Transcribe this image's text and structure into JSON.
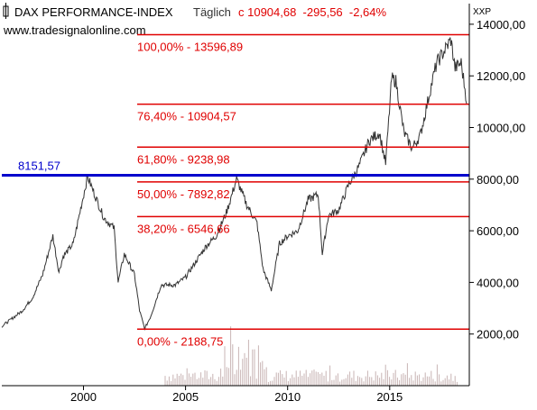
{
  "header": {
    "name": "DAX PERFORMANCE-INDEX",
    "interval": "Täglich",
    "quote": "c 10904,68  -295,56  -2,64%",
    "website": "www.tradesignalonline.com",
    "axis_tag": "XXP"
  },
  "colors": {
    "price": "#333333",
    "fib": "#e00000",
    "fib_text": "#e00000",
    "support": "#0000cc",
    "volume": "#c8b4b4",
    "axis": "#000000"
  },
  "chart_data": {
    "type": "line",
    "xlim": [
      1996.0,
      2018.9
    ],
    "ylim": [
      0,
      14800
    ],
    "x_ticks": [
      2000,
      2005,
      2010,
      2015
    ],
    "x_tick_labels": [
      "2000",
      "2005",
      "2010",
      "2015"
    ],
    "y_ticks": [
      2000,
      4000,
      6000,
      8000,
      10000,
      12000,
      14000
    ],
    "y_tick_labels": [
      "2000,00",
      "4000,00",
      "6000,00",
      "8000,00",
      "10000,00",
      "12000,00",
      "14000,00"
    ],
    "series": [
      {
        "x": [
          1996.0,
          1996.5,
          1997.0,
          1997.5,
          1998.0,
          1998.5,
          1998.8,
          1999.0,
          1999.5,
          1999.9,
          2000.2,
          2000.6,
          2001.0,
          2001.5,
          2001.7,
          2002.0,
          2002.5,
          2002.75,
          2003.0,
          2003.3,
          2003.8,
          2004.5,
          2005.0,
          2005.5,
          2006.0,
          2006.5,
          2007.0,
          2007.5,
          2008.0,
          2008.5,
          2008.8,
          2009.2,
          2009.6,
          2010.0,
          2010.5,
          2011.0,
          2011.5,
          2011.7,
          2012.0,
          2012.5,
          2013.0,
          2013.5,
          2014.0,
          2014.5,
          2014.8,
          2015.1,
          2015.3,
          2015.7,
          2016.1,
          2016.5,
          2017.0,
          2017.3,
          2017.7,
          2018.0,
          2018.2,
          2018.5,
          2018.8
        ],
        "y": [
          2300,
          2600,
          2900,
          3400,
          4300,
          5800,
          4400,
          5000,
          5500,
          7000,
          8100,
          7300,
          6500,
          6100,
          4000,
          5100,
          4300,
          2900,
          2200,
          2700,
          3900,
          3900,
          4200,
          4800,
          5400,
          5800,
          6700,
          8000,
          7000,
          6300,
          4500,
          3700,
          5500,
          5800,
          6000,
          7200,
          7400,
          5100,
          6600,
          6800,
          7800,
          8500,
          9500,
          9800,
          8600,
          11900,
          11800,
          9800,
          9200,
          9700,
          11500,
          12500,
          13000,
          13400,
          12300,
          12500,
          10900
        ]
      }
    ],
    "fibonacci_levels": [
      {
        "label": "100,00% - 13596,89",
        "value": 13596.89
      },
      {
        "label": "76,40% - 10904,57",
        "value": 10904.57
      },
      {
        "label": "61,80% - 9238,98",
        "value": 9238.98
      },
      {
        "label": "50,00% - 7892,82",
        "value": 7892.82
      },
      {
        "label": "38,20% - 6546,66",
        "value": 6546.66
      },
      {
        "label": "0,00% - 2188,75",
        "value": 2188.75
      }
    ],
    "support_line": {
      "label": "8151,57",
      "value": 8151.57
    },
    "volume_range": [
      2004.0,
      2018.3
    ],
    "grid": false
  }
}
